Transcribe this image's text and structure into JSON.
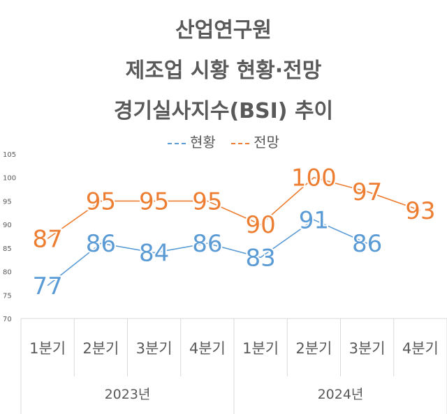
{
  "chart_data": {
    "type": "line",
    "title": [
      "산업연구원",
      "제조업 시황 현황·전망",
      "경기실사지수(BSI) 추이"
    ],
    "categories": [
      "1분기",
      "2분기",
      "3분기",
      "4분기",
      "1분기",
      "2분기",
      "3분기",
      "4분기"
    ],
    "groups": [
      {
        "label": "2023년",
        "span": 4
      },
      {
        "label": "2024년",
        "span": 4
      }
    ],
    "series": [
      {
        "name": "현황",
        "color": "#5b9bd5",
        "values": [
          77,
          86,
          84,
          86,
          83,
          91,
          86,
          null
        ]
      },
      {
        "name": "전망",
        "color": "#ed7d31",
        "values": [
          87,
          95,
          95,
          95,
          90,
          100,
          97,
          93
        ]
      }
    ],
    "ylim": [
      70,
      105
    ],
    "yticks": [
      70,
      75,
      80,
      85,
      90,
      95,
      100,
      105
    ],
    "legend_position": "top",
    "grid": false,
    "data_labels": true
  }
}
